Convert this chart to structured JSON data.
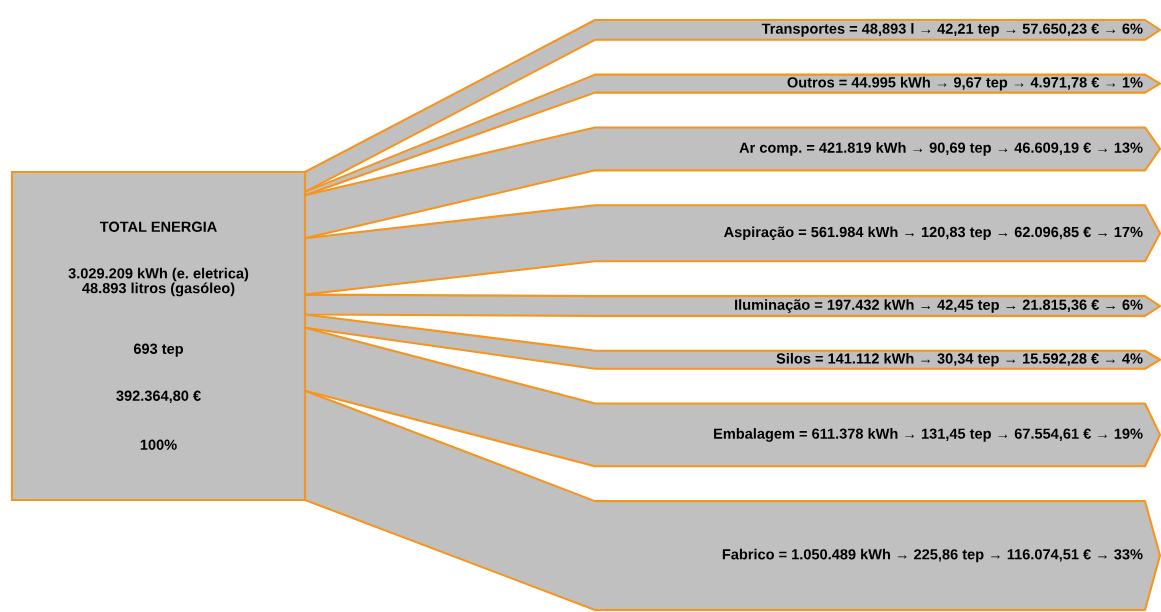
{
  "chart_data": {
    "type": "other",
    "title": "TOTAL ENERGIA",
    "annotations": [
      "3.029.209 kWh (e. eletrica)\n48.893 litros (gasóleo)",
      "693 tep",
      "392.364,80 €",
      "100%"
    ],
    "categories": [
      "Transportes = 48,893 l → 42,21 tep → 57.650,23 € →",
      "Outros = 44.995 kWh → 9,67 tep → 4.971,78 € →",
      "Ar comp. = 421.819 kWh → 90,69 tep → 46.609,19 € →",
      "Aspiração = 561.984 kWh → 120,83 tep → 62.096,85 € →",
      "Iluminação = 197.432 kWh → 42,45 tep → 21.815,36 € →",
      "Silos = 141.112 kWh → 30,34 tep → 15.592,28 € →",
      "Embalagem = 611.378 kWh → 131,45 tep → 67.554,61 € →",
      "Fabrico = 1.050.489 kWh → 225,86 tep → 116.074,51 € →"
    ],
    "values": [
      6,
      1,
      13,
      17,
      6,
      4,
      19,
      33
    ],
    "value_labels": [
      "6%",
      "1%",
      "13%",
      "17%",
      "6%",
      "4%",
      "19%",
      "33%"
    ],
    "color": "#c0c0c0"
  }
}
